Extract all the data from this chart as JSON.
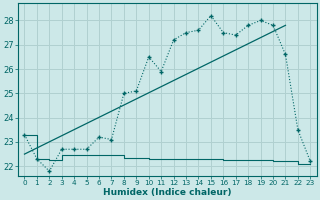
{
  "xlabel": "Humidex (Indice chaleur)",
  "bg_color": "#cce8e8",
  "grid_color": "#b0d0d0",
  "line_color": "#006666",
  "ylim": [
    21.6,
    28.7
  ],
  "xlim": [
    -0.5,
    23.5
  ],
  "yticks": [
    22,
    23,
    24,
    25,
    26,
    27,
    28
  ],
  "xticks": [
    0,
    1,
    2,
    3,
    4,
    5,
    6,
    7,
    8,
    9,
    10,
    11,
    12,
    13,
    14,
    15,
    16,
    17,
    18,
    19,
    20,
    21,
    22,
    23
  ],
  "curve_x": [
    0,
    1,
    2,
    3,
    4,
    5,
    6,
    7,
    8,
    9,
    10,
    11,
    12,
    13,
    14,
    15,
    16,
    17,
    18,
    19,
    20,
    21,
    22,
    23
  ],
  "curve_y": [
    23.3,
    22.3,
    21.8,
    22.7,
    22.7,
    22.7,
    23.2,
    23.1,
    25.0,
    25.1,
    26.5,
    25.9,
    27.2,
    27.5,
    27.6,
    28.2,
    27.5,
    27.4,
    27.8,
    28.0,
    27.8,
    26.6,
    23.5,
    22.2
  ],
  "trend_x": [
    0,
    21
  ],
  "trend_y": [
    22.5,
    27.8
  ],
  "flat_x": [
    0,
    1,
    2,
    3,
    4,
    5,
    6,
    7,
    8,
    9,
    10,
    11,
    12,
    13,
    14,
    15,
    16,
    17,
    18,
    19,
    20,
    21,
    22,
    23
  ],
  "flat_y": [
    23.3,
    22.3,
    22.25,
    22.45,
    22.45,
    22.45,
    22.45,
    22.45,
    22.35,
    22.35,
    22.3,
    22.3,
    22.3,
    22.3,
    22.3,
    22.3,
    22.25,
    22.25,
    22.25,
    22.25,
    22.2,
    22.2,
    22.1,
    22.1
  ]
}
